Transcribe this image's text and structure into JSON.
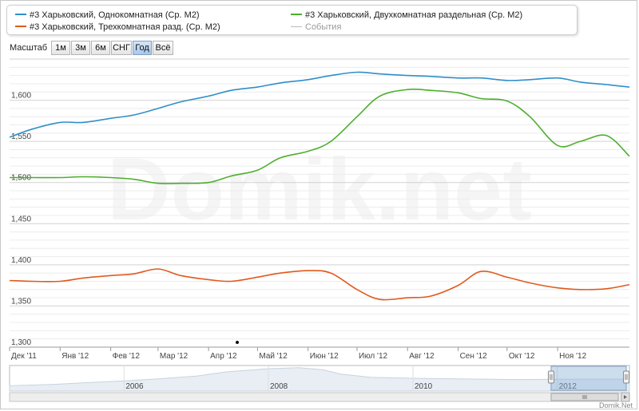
{
  "legend": {
    "items": [
      {
        "label": "#3 Харьковский, Однокомнатная (Ср. М2)",
        "color": "#2f8fc9"
      },
      {
        "label": "#3 Харьковский, Трехкомнатная разд. (Ср. М2)",
        "color": "#e05a1e"
      },
      {
        "label": "#3 Харьковский, Двухкомнатная раздельная (Ср. М2)",
        "color": "#4caf2c"
      },
      {
        "label": "События",
        "color": "#aaaaaa"
      }
    ]
  },
  "toolbar": {
    "label": "Масштаб",
    "buttons": [
      "1м",
      "3м",
      "6м",
      "СНГ",
      "Год",
      "Всё"
    ],
    "active_button": "Год"
  },
  "watermark": "Domik.net",
  "credit": "Domik.Net",
  "chart_data": {
    "type": "line",
    "x_ticks": [
      "Дек '11",
      "Янв '12",
      "Фев '12",
      "Мар '12",
      "Апр '12",
      "Май '12",
      "Июн '12",
      "Июл '12",
      "Авг '12",
      "Сен '12",
      "Окт '12",
      "Ноя '12"
    ],
    "y_ticks": [
      "1,300",
      "1,350",
      "1,400",
      "1,450",
      "1,500",
      "1,550",
      "1,600"
    ],
    "ylim": [
      1300,
      1650
    ],
    "x_range": [
      "2011-12-01",
      "2012-12-15"
    ],
    "grid": true,
    "series": [
      {
        "name": "#3 Харьковский, Однокомнатная (Ср. М2)",
        "color": "#2f8fc9",
        "points": [
          [
            "2011-12-01",
            1555
          ],
          [
            "2011-12-15",
            1565
          ],
          [
            "2012-01-01",
            1573
          ],
          [
            "2012-01-15",
            1573
          ],
          [
            "2012-02-01",
            1578
          ],
          [
            "2012-02-15",
            1582
          ],
          [
            "2012-03-01",
            1590
          ],
          [
            "2012-03-15",
            1598
          ],
          [
            "2012-04-01",
            1605
          ],
          [
            "2012-04-15",
            1612
          ],
          [
            "2012-05-01",
            1616
          ],
          [
            "2012-05-15",
            1621
          ],
          [
            "2012-06-01",
            1625
          ],
          [
            "2012-06-15",
            1630
          ],
          [
            "2012-07-01",
            1634
          ],
          [
            "2012-07-15",
            1632
          ],
          [
            "2012-08-01",
            1630
          ],
          [
            "2012-08-15",
            1629
          ],
          [
            "2012-09-01",
            1627
          ],
          [
            "2012-09-15",
            1627
          ],
          [
            "2012-10-01",
            1624
          ],
          [
            "2012-10-15",
            1625
          ],
          [
            "2012-11-01",
            1627
          ],
          [
            "2012-11-15",
            1622
          ],
          [
            "2012-12-01",
            1619
          ],
          [
            "2012-12-15",
            1616
          ]
        ]
      },
      {
        "name": "#3 Харьковский, Двухкомнатная раздельная (Ср. М2)",
        "color": "#4caf2c",
        "points": [
          [
            "2011-12-01",
            1506
          ],
          [
            "2011-12-15",
            1506
          ],
          [
            "2012-01-01",
            1506
          ],
          [
            "2012-01-15",
            1507
          ],
          [
            "2012-02-01",
            1506
          ],
          [
            "2012-02-15",
            1504
          ],
          [
            "2012-03-01",
            1499
          ],
          [
            "2012-03-15",
            1499
          ],
          [
            "2012-04-01",
            1500
          ],
          [
            "2012-04-15",
            1508
          ],
          [
            "2012-05-01",
            1515
          ],
          [
            "2012-05-15",
            1530
          ],
          [
            "2012-06-01",
            1538
          ],
          [
            "2012-06-15",
            1550
          ],
          [
            "2012-07-01",
            1580
          ],
          [
            "2012-07-15",
            1605
          ],
          [
            "2012-08-01",
            1613
          ],
          [
            "2012-08-15",
            1612
          ],
          [
            "2012-09-01",
            1609
          ],
          [
            "2012-09-15",
            1602
          ],
          [
            "2012-10-01",
            1599
          ],
          [
            "2012-10-15",
            1580
          ],
          [
            "2012-11-01",
            1545
          ],
          [
            "2012-11-15",
            1550
          ],
          [
            "2012-12-01",
            1557
          ],
          [
            "2012-12-15",
            1532
          ]
        ]
      },
      {
        "name": "#3 Харьковский, Трехкомнатная разд. (Ср. М2)",
        "color": "#e05a1e",
        "points": [
          [
            "2011-12-01",
            1381
          ],
          [
            "2011-12-15",
            1380
          ],
          [
            "2012-01-01",
            1380
          ],
          [
            "2012-01-15",
            1384
          ],
          [
            "2012-02-01",
            1387
          ],
          [
            "2012-02-15",
            1389
          ],
          [
            "2012-03-01",
            1395
          ],
          [
            "2012-03-15",
            1387
          ],
          [
            "2012-04-01",
            1382
          ],
          [
            "2012-04-15",
            1380
          ],
          [
            "2012-05-01",
            1385
          ],
          [
            "2012-05-15",
            1390
          ],
          [
            "2012-06-01",
            1393
          ],
          [
            "2012-06-15",
            1390
          ],
          [
            "2012-07-01",
            1370
          ],
          [
            "2012-07-15",
            1358
          ],
          [
            "2012-08-01",
            1360
          ],
          [
            "2012-08-15",
            1362
          ],
          [
            "2012-09-01",
            1375
          ],
          [
            "2012-09-15",
            1392
          ],
          [
            "2012-10-01",
            1385
          ],
          [
            "2012-10-15",
            1378
          ],
          [
            "2012-11-01",
            1372
          ],
          [
            "2012-11-15",
            1370
          ],
          [
            "2012-12-01",
            1371
          ],
          [
            "2012-12-15",
            1376
          ]
        ]
      }
    ],
    "navigator": {
      "x_labels": [
        "2006",
        "2008",
        "2010",
        "2012"
      ],
      "x_range": [
        "2004-06-01",
        "2012-12-31"
      ],
      "selected_range": [
        "2011-12-01",
        "2012-12-15"
      ],
      "area": [
        [
          "2004-06-01",
          1250
        ],
        [
          "2005-01-01",
          1310
        ],
        [
          "2006-01-01",
          1480
        ],
        [
          "2006-06-01",
          1560
        ],
        [
          "2007-01-01",
          1700
        ],
        [
          "2007-06-01",
          1900
        ],
        [
          "2008-01-01",
          2050
        ],
        [
          "2008-06-01",
          2100
        ],
        [
          "2008-10-01",
          2000
        ],
        [
          "2009-01-01",
          1800
        ],
        [
          "2009-06-01",
          1650
        ],
        [
          "2010-01-01",
          1600
        ],
        [
          "2010-06-01",
          1580
        ],
        [
          "2011-01-01",
          1560
        ],
        [
          "2011-06-01",
          1540
        ],
        [
          "2012-01-01",
          1550
        ],
        [
          "2012-06-01",
          1560
        ],
        [
          "2012-12-31",
          1555
        ]
      ]
    }
  }
}
